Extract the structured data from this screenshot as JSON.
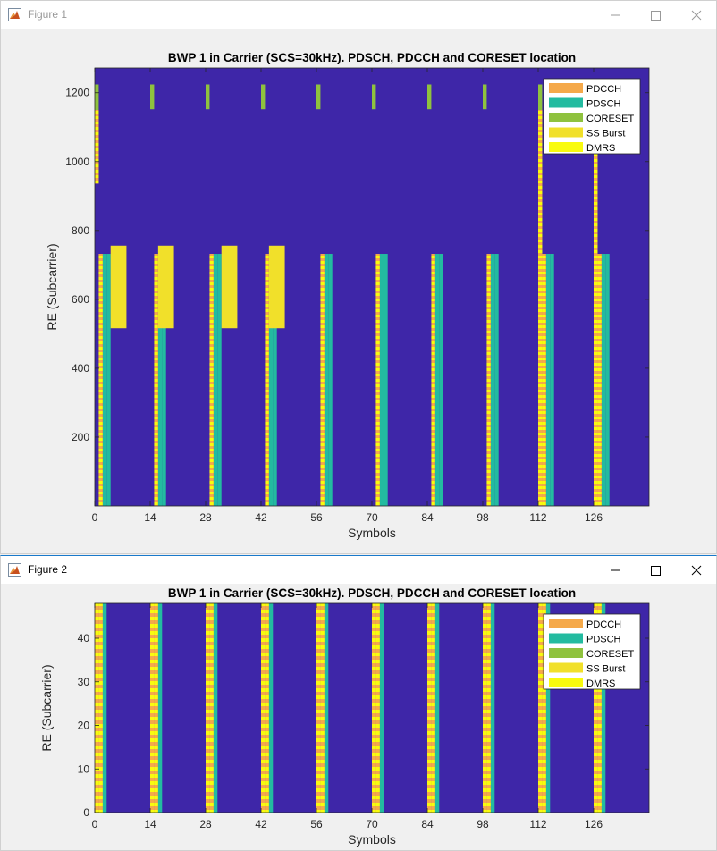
{
  "windows": [
    {
      "title": "Figure 1",
      "active": false
    },
    {
      "title": "Figure 2",
      "active": true
    }
  ],
  "colors": {
    "background": "#3e26a8",
    "pdcch": "#f5a94a",
    "pdsch": "#23bba0",
    "coreset": "#8fc23e",
    "ssburst": "#f1e02a",
    "dmrs": "#f9fb0e"
  },
  "icons": [
    "matlab-figure-icon",
    "minimize-icon",
    "maximize-icon",
    "close-icon"
  ],
  "chart_data": [
    {
      "type": "heatmap",
      "title": "BWP 1 in Carrier (SCS=30kHz). PDSCH, PDCCH and CORESET location",
      "xlabel": "Symbols",
      "ylabel": "RE (Subcarrier)",
      "xlim": [
        0,
        140
      ],
      "ylim": [
        0,
        1272
      ],
      "xticks": [
        0,
        14,
        28,
        42,
        56,
        70,
        84,
        98,
        112,
        126
      ],
      "yticks": [
        200,
        400,
        600,
        800,
        1000,
        1200
      ],
      "legend": {
        "position": "top-right",
        "entries": [
          "PDCCH",
          "PDSCH",
          "CORESET",
          "SS Burst",
          "DMRS"
        ]
      },
      "slots": [
        {
          "start": 0,
          "coreset": [
            936,
            1224
          ],
          "pdsch": [
            0,
            732
          ]
        },
        {
          "start": 14,
          "coreset": [
            1152,
            1224
          ],
          "pdsch": [
            0,
            732
          ]
        },
        {
          "start": 28,
          "coreset": [
            1152,
            1224
          ],
          "pdsch": [
            0,
            732
          ]
        },
        {
          "start": 42,
          "coreset": [
            1152,
            1224
          ],
          "pdsch": [
            0,
            732
          ]
        },
        {
          "start": 56,
          "coreset": [
            1152,
            1224
          ],
          "pdsch": [
            0,
            732
          ]
        },
        {
          "start": 70,
          "coreset": [
            1152,
            1224
          ],
          "pdsch": [
            0,
            732
          ]
        },
        {
          "start": 84,
          "coreset": [
            1152,
            1224
          ],
          "pdsch": [
            0,
            732
          ]
        },
        {
          "start": 98,
          "coreset": [
            1152,
            1224
          ],
          "pdsch": [
            0,
            732
          ]
        },
        {
          "start": 112,
          "coreset": [
            0,
            1224
          ],
          "pdsch": [
            0,
            732
          ]
        },
        {
          "start": 126,
          "coreset": [
            0,
            1224
          ],
          "pdsch": [
            0,
            732
          ]
        }
      ],
      "pdsch_symbols": [
        2,
        3
      ],
      "ss_bursts": [
        {
          "symbols": [
            4,
            8
          ],
          "re": [
            516,
            756
          ]
        },
        {
          "symbols": [
            16,
            20
          ],
          "re": [
            516,
            756
          ]
        },
        {
          "symbols": [
            32,
            36
          ],
          "re": [
            516,
            756
          ]
        },
        {
          "symbols": [
            44,
            48
          ],
          "re": [
            516,
            756
          ]
        }
      ]
    },
    {
      "type": "heatmap",
      "title": "BWP 1 in Carrier (SCS=30kHz). PDSCH, PDCCH and CORESET location",
      "xlabel": "Symbols",
      "ylabel": "RE (Subcarrier)",
      "xlim": [
        0,
        140
      ],
      "ylim": [
        0,
        48
      ],
      "xticks": [
        0,
        14,
        28,
        42,
        56,
        70,
        84,
        98,
        112,
        126
      ],
      "yticks": [
        0,
        10,
        20,
        30,
        40
      ],
      "legend": {
        "position": "top-right",
        "entries": [
          "PDCCH",
          "PDSCH",
          "CORESET",
          "SS Burst",
          "DMRS"
        ]
      },
      "pdcch_symbols": [
        0,
        14,
        28,
        42,
        56,
        70,
        84,
        98,
        112,
        126
      ],
      "pdsch_symbols": [
        1,
        2,
        15,
        16,
        29,
        30,
        43,
        44,
        57,
        58,
        71,
        72,
        85,
        86,
        99,
        100,
        113,
        114,
        127,
        128
      ],
      "dmrs_symbols": [
        1,
        15,
        29,
        43,
        57,
        71,
        85,
        99,
        113,
        127
      ]
    }
  ]
}
